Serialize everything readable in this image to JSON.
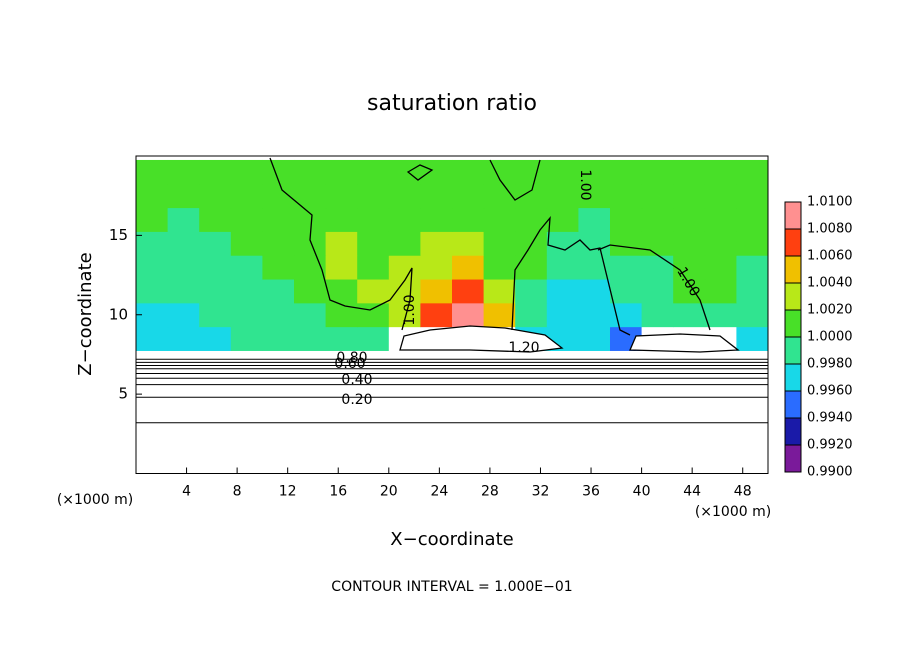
{
  "chart_data": {
    "type": "heatmap",
    "title": "saturation ratio",
    "x_label": "X−coordinate",
    "y_label": "Z−coordinate",
    "x_unit": "(×1000 m)",
    "x_unit_right": "(×1000 m)",
    "footer": "CONTOUR INTERVAL = 1.000E−01",
    "xlim": [
      0,
      50
    ],
    "ylim": [
      0,
      20
    ],
    "xticks": [
      4,
      8,
      12,
      16,
      20,
      24,
      28,
      32,
      36,
      40,
      44,
      48
    ],
    "yticks": [
      5,
      10,
      15
    ],
    "x": [
      1.25,
      3.75,
      6.25,
      8.75,
      11.25,
      13.75,
      16.25,
      18.75,
      21.25,
      23.75,
      26.25,
      28.75,
      31.25,
      33.75,
      36.25,
      38.75,
      41.25,
      43.75,
      46.25,
      48.75
    ],
    "y": [
      8.5,
      10,
      11.5,
      13,
      14.5,
      16,
      17.5,
      19
    ],
    "z": [
      [
        0.997,
        0.997,
        0.997,
        0.998,
        0.998,
        0.998,
        0.998,
        0.998,
        1.2,
        1.2,
        1.2,
        1.2,
        0.997,
        0.996,
        0.996,
        0.995,
        1.2,
        1.2,
        1.2,
        0.997
      ],
      [
        0.997,
        0.997,
        0.998,
        0.998,
        0.998,
        0.999,
        1.0,
        1.001,
        1.003,
        1.006,
        1.008,
        1.005,
        0.998,
        0.997,
        0.996,
        0.996,
        0.998,
        0.999,
        0.999,
        0.998
      ],
      [
        0.998,
        0.998,
        0.998,
        0.998,
        0.999,
        1.0,
        1.001,
        1.002,
        1.003,
        1.005,
        1.006,
        1.003,
        0.999,
        0.997,
        0.997,
        0.998,
        0.999,
        1.0,
        1.0,
        0.999
      ],
      [
        0.999,
        0.999,
        0.999,
        0.999,
        1.0,
        1.001,
        1.002,
        1.001,
        1.002,
        1.003,
        1.004,
        1.001,
        1.0,
        0.998,
        0.998,
        0.999,
        0.999,
        1.0,
        1.0,
        0.999
      ],
      [
        0.999,
        0.999,
        0.999,
        1.0,
        1.0,
        1.001,
        1.002,
        1.001,
        1.001,
        1.002,
        1.002,
        1.001,
        1.0,
        0.999,
        0.999,
        1.0,
        1.0,
        1.0,
        1.0,
        1.0
      ],
      [
        1.0,
        0.999,
        1.0,
        1.0,
        1.0,
        1.001,
        1.001,
        1.001,
        1.0,
        1.001,
        1.001,
        1.0,
        1.0,
        1.0,
        0.999,
        1.0,
        1.0,
        1.0,
        1.0,
        1.0
      ],
      [
        1.0,
        1.0,
        1.0,
        1.0,
        1.0,
        1.001,
        1.0,
        1.0,
        1.0,
        1.0,
        1.0,
        1.0,
        1.0,
        1.0,
        1.0,
        1.0,
        1.0,
        1.0,
        1.0,
        1.0
      ],
      [
        1.0,
        1.0,
        1.0,
        1.0,
        1.0,
        1.0,
        1.0,
        1.0,
        1.0,
        1.0,
        1.0,
        1.0,
        1.0,
        1.0,
        1.0,
        1.0,
        1.0,
        1.0,
        1.0,
        1.0
      ]
    ],
    "colorbar_ticks": [
      {
        "value": 0.99,
        "label": "0.9900"
      },
      {
        "value": 0.992,
        "label": "0.9920"
      },
      {
        "value": 0.994,
        "label": "0.9940"
      },
      {
        "value": 0.996,
        "label": "0.9960"
      },
      {
        "value": 0.998,
        "label": "0.9980"
      },
      {
        "value": 1.0,
        "label": "1.0000"
      },
      {
        "value": 1.002,
        "label": "1.0020"
      },
      {
        "value": 1.004,
        "label": "1.0040"
      },
      {
        "value": 1.006,
        "label": "1.0060"
      },
      {
        "value": 1.008,
        "label": "1.0080"
      },
      {
        "value": 1.01,
        "label": "1.0100"
      }
    ],
    "colors": [
      "#7a1a9a",
      "#1a1aa8",
      "#2a6cff",
      "#18d8e8",
      "#30e490",
      "#48e028",
      "#b8e818",
      "#f0c000",
      "#ff4010",
      "#ff9090"
    ],
    "contour_heights": [
      3.2,
      4.8,
      5.6,
      6.0,
      6.3,
      6.6,
      6.8,
      7.0,
      7.2
    ],
    "contour_labels": [
      "0.20",
      "0.40",
      "0.60",
      "0.80",
      "1.00",
      "1.00",
      "1.00",
      "1.20"
    ]
  }
}
